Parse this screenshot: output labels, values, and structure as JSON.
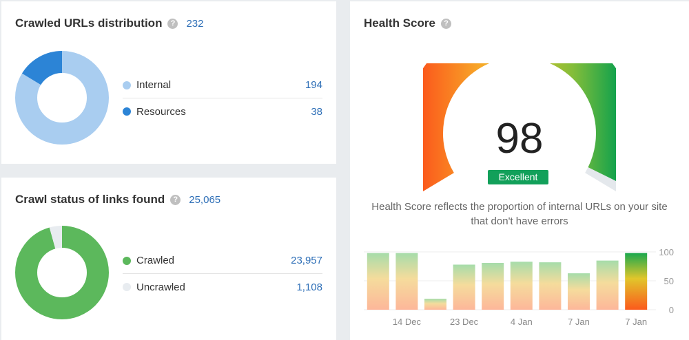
{
  "crawled_urls": {
    "title": "Crawled URLs distribution",
    "help": "?",
    "total": "232",
    "items": [
      {
        "label": "Internal",
        "value": "194",
        "count": 194,
        "color": "#a9cdf0"
      },
      {
        "label": "Resources",
        "value": "38",
        "count": 38,
        "color": "#2c84d6"
      }
    ]
  },
  "crawl_status": {
    "title": "Crawl status of links found",
    "help": "?",
    "total": "25,065",
    "items": [
      {
        "label": "Crawled",
        "value": "23,957",
        "count": 23957,
        "color": "#5cb85c"
      },
      {
        "label": "Uncrawled",
        "value": "1,108",
        "count": 1108,
        "color": "#e8ecf0"
      }
    ]
  },
  "health": {
    "title": "Health Score",
    "help": "?",
    "score": "98",
    "score_value": 98,
    "badge": "Excellent",
    "description": "Health Score reflects the proportion of internal URLs on your site that don't have errors"
  },
  "chart_data": {
    "type": "bar",
    "categories": [
      "",
      "14 Dec",
      "",
      "23 Dec",
      "",
      "4 Jan",
      "",
      "7 Jan",
      "",
      "7 Jan"
    ],
    "values": [
      98,
      98,
      19,
      78,
      81,
      83,
      82,
      63,
      85,
      98
    ],
    "ylim": [
      0,
      100
    ],
    "yticks": [
      0,
      50,
      100
    ],
    "highlight_index": 9
  }
}
